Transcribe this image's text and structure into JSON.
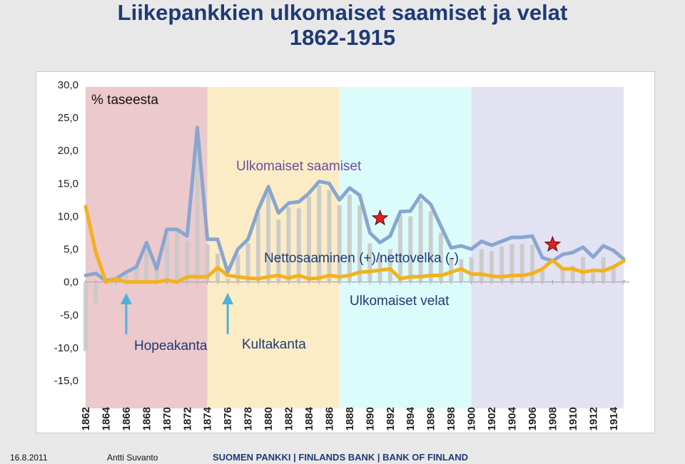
{
  "header": {
    "title_line1": "Liikepankkien ulkomaiset saamiset ja velat",
    "title_line2": "1862-1915"
  },
  "footer": {
    "date": "16.8.2011",
    "author": "Antti Suvanto",
    "org": "SUOMEN PANKKI | FINLANDS BANK | BANK OF FINLAND"
  },
  "chart_data": {
    "type": "line",
    "ylabel": "% taseesta",
    "ylim": [
      -15,
      30
    ],
    "yticks": [
      30,
      25,
      20,
      15,
      10,
      5,
      0,
      -5,
      -10,
      -15
    ],
    "ytick_labels": [
      "30,0",
      "25,0",
      "20,0",
      "15,0",
      "10,0",
      "5,0",
      "0,0",
      "-5,0",
      "-10,0",
      "-15,0"
    ],
    "xlim": [
      1862,
      1915
    ],
    "xtick_labels": [
      "1862",
      "1864",
      "1866",
      "1868",
      "1870",
      "1872",
      "1874",
      "1876",
      "1878",
      "1880",
      "1882",
      "1884",
      "1886",
      "1888",
      "1890",
      "1892",
      "1894",
      "1896",
      "1898",
      "1900",
      "1902",
      "1904",
      "1906",
      "1908",
      "1910",
      "1912",
      "1914"
    ],
    "periods": [
      {
        "start": 1862,
        "end": 1874,
        "color": "#ecc9cc"
      },
      {
        "start": 1874,
        "end": 1887,
        "color": "#fcecc6"
      },
      {
        "start": 1887,
        "end": 1900,
        "color": "#dcfbfb"
      },
      {
        "start": 1900,
        "end": 1915,
        "color": "#e2e2f3"
      }
    ],
    "series": [
      {
        "name": "Ulkomaiset saamiset",
        "kind": "line",
        "color": "#89a6d0",
        "x": [
          1862,
          1863,
          1864,
          1865,
          1866,
          1867,
          1868,
          1869,
          1870,
          1871,
          1872,
          1873,
          1874,
          1875,
          1876,
          1877,
          1878,
          1879,
          1880,
          1881,
          1882,
          1883,
          1884,
          1885,
          1886,
          1887,
          1888,
          1889,
          1890,
          1891,
          1892,
          1893,
          1894,
          1895,
          1896,
          1897,
          1898,
          1899,
          1900,
          1901,
          1902,
          1903,
          1904,
          1905,
          1906,
          1907,
          1908,
          1909,
          1910,
          1911,
          1912,
          1913,
          1914,
          1915
        ],
        "y": [
          1.0,
          1.3,
          0.2,
          0.5,
          1.5,
          2.3,
          6.0,
          2.0,
          8.0,
          8.0,
          7.0,
          23.5,
          6.5,
          6.5,
          1.5,
          5.0,
          6.5,
          11.0,
          14.5,
          10.5,
          12.0,
          12.2,
          13.5,
          15.3,
          15.0,
          12.5,
          14.3,
          13.2,
          7.5,
          6.0,
          7.0,
          10.7,
          10.8,
          13.2,
          11.8,
          8.5,
          5.2,
          5.5,
          5.0,
          6.2,
          5.6,
          6.2,
          6.8,
          6.8,
          7.0,
          3.7,
          3.2,
          4.2,
          4.5,
          5.3,
          3.8,
          5.5,
          4.8,
          3.5
        ]
      },
      {
        "name": "Ulkomaiset velat",
        "kind": "line",
        "color": "#f3b21c",
        "x": [
          1862,
          1863,
          1864,
          1865,
          1866,
          1867,
          1868,
          1869,
          1870,
          1871,
          1872,
          1873,
          1874,
          1875,
          1876,
          1877,
          1878,
          1879,
          1880,
          1881,
          1882,
          1883,
          1884,
          1885,
          1886,
          1887,
          1888,
          1889,
          1890,
          1891,
          1892,
          1893,
          1894,
          1895,
          1896,
          1897,
          1898,
          1899,
          1900,
          1901,
          1902,
          1903,
          1904,
          1905,
          1906,
          1907,
          1908,
          1909,
          1910,
          1911,
          1912,
          1913,
          1914,
          1915
        ],
        "y": [
          11.5,
          4.5,
          0.0,
          0.5,
          0.0,
          0.0,
          0.0,
          0.0,
          0.3,
          0.0,
          0.8,
          0.8,
          0.8,
          2.2,
          1.0,
          0.8,
          0.6,
          0.5,
          0.8,
          1.0,
          0.6,
          1.0,
          0.5,
          0.6,
          1.0,
          0.8,
          1.0,
          1.5,
          1.6,
          1.8,
          2.0,
          0.5,
          0.8,
          0.8,
          1.0,
          1.0,
          1.5,
          2.0,
          1.2,
          1.2,
          0.9,
          0.8,
          1.0,
          1.0,
          1.3,
          2.0,
          3.3,
          2.0,
          2.0,
          1.5,
          1.8,
          1.7,
          2.3,
          3.2
        ]
      },
      {
        "name": "Nettosaaminen (+)/nettovelka (-)",
        "kind": "bar",
        "color": "#c9c9c9",
        "x": [
          1862,
          1863,
          1864,
          1865,
          1866,
          1867,
          1868,
          1869,
          1870,
          1871,
          1872,
          1873,
          1874,
          1875,
          1876,
          1877,
          1878,
          1879,
          1880,
          1881,
          1882,
          1883,
          1884,
          1885,
          1886,
          1887,
          1888,
          1889,
          1890,
          1891,
          1892,
          1893,
          1894,
          1895,
          1896,
          1897,
          1898,
          1899,
          1900,
          1901,
          1902,
          1903,
          1904,
          1905,
          1906,
          1907,
          1908,
          1909,
          1910,
          1911,
          1912,
          1913,
          1914,
          1915
        ],
        "y": [
          -10.5,
          -3.2,
          0.2,
          0.0,
          1.5,
          2.3,
          6.0,
          2.0,
          7.7,
          8.0,
          6.2,
          22.7,
          5.7,
          4.3,
          0.5,
          4.2,
          5.9,
          10.5,
          13.7,
          9.5,
          11.4,
          11.2,
          13.0,
          14.7,
          14.0,
          11.7,
          13.3,
          11.7,
          5.9,
          4.2,
          5.0,
          10.2,
          10.0,
          12.4,
          10.8,
          7.5,
          3.7,
          3.5,
          3.8,
          5.0,
          4.7,
          5.4,
          5.8,
          5.8,
          5.7,
          1.7,
          -0.1,
          2.2,
          2.5,
          3.8,
          2.0,
          3.8,
          2.5,
          0.3
        ]
      }
    ],
    "annotations": [
      {
        "id": "taseesta",
        "text": "% taseesta",
        "color": "#111111"
      },
      {
        "id": "saamiset",
        "text": "Ulkomaiset saamiset",
        "color": "#6a4fa0"
      },
      {
        "id": "netto",
        "text": "Nettosaaminen (+)/nettovelka (-)",
        "color": "#1f3a75"
      },
      {
        "id": "velat",
        "text": "Ulkomaiset velat",
        "color": "#1f3a75"
      },
      {
        "id": "hopeakanta",
        "text": "Hopeakanta",
        "color": "#1f3a75"
      },
      {
        "id": "kultakanta",
        "text": "Kultakanta",
        "color": "#1f3a75"
      }
    ],
    "arrows": [
      {
        "name": "hopeakanta-arrow",
        "x": 1866,
        "color": "#4cb3d8"
      },
      {
        "name": "kultakanta-arrow",
        "x": 1876,
        "color": "#4cb3d8"
      }
    ],
    "stars": [
      {
        "name": "star-1891",
        "x": 1891,
        "y": 9.7,
        "color": "#e02020"
      },
      {
        "name": "star-1908",
        "x": 1908,
        "y": 5.7,
        "color": "#e02020"
      }
    ]
  }
}
